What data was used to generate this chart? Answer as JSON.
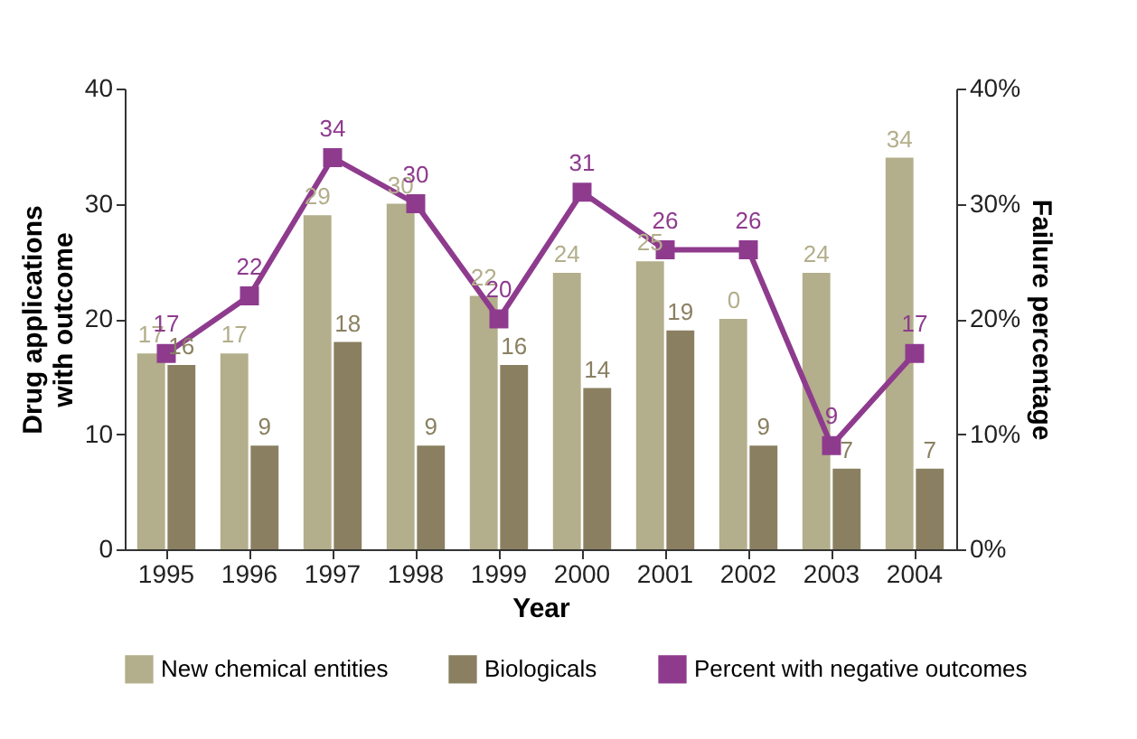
{
  "chart_data": {
    "type": "bar",
    "xlabel": "Year",
    "ylabel": "Drug applications with outcome",
    "y2label": "Failure percentage",
    "categories": [
      "1995",
      "1996",
      "1997",
      "1998",
      "1999",
      "2000",
      "2001",
      "2002",
      "2003",
      "2004"
    ],
    "series": [
      {
        "name": "New chemical entities",
        "color": "#b3ae8b",
        "values": [
          17,
          17,
          29,
          30,
          22,
          24,
          25,
          20,
          24,
          34
        ],
        "value_labels": [
          "17",
          "17",
          "29",
          "30",
          "22",
          "24",
          "25",
          null,
          "24",
          "34"
        ]
      },
      {
        "name": "Biologicals",
        "color": "#8a8061",
        "values": [
          16,
          9,
          18,
          9,
          16,
          14,
          19,
          9,
          7,
          7
        ],
        "value_labels": [
          "16",
          "9",
          "18",
          "9",
          "16",
          "14",
          "19",
          "9",
          "7",
          "7"
        ]
      },
      {
        "name": "Percent with negative outcomes",
        "type": "line",
        "axis": "y2",
        "color": "#8e3b8e",
        "marker": "square",
        "values": [
          17,
          22,
          34,
          30,
          20,
          31,
          26,
          26,
          9,
          17
        ],
        "value_labels": [
          "17",
          "22",
          "34",
          "30",
          "20",
          "31",
          "26",
          "26",
          "9",
          "17"
        ]
      }
    ],
    "ylim": [
      0,
      40
    ],
    "yticks": [
      0,
      10,
      20,
      30,
      40
    ],
    "y2lim": [
      0,
      40
    ],
    "y2ticks": [
      {
        "value": 0,
        "label": "0%"
      },
      {
        "value": 10,
        "label": "10%"
      },
      {
        "value": 20,
        "label": "20%"
      },
      {
        "value": 30,
        "label": "30%"
      },
      {
        "value": 40,
        "label": "40%"
      }
    ],
    "annotations": [
      {
        "text": "0",
        "x": "2002",
        "y": 20
      }
    ],
    "grid": false,
    "legend": "bottom"
  }
}
